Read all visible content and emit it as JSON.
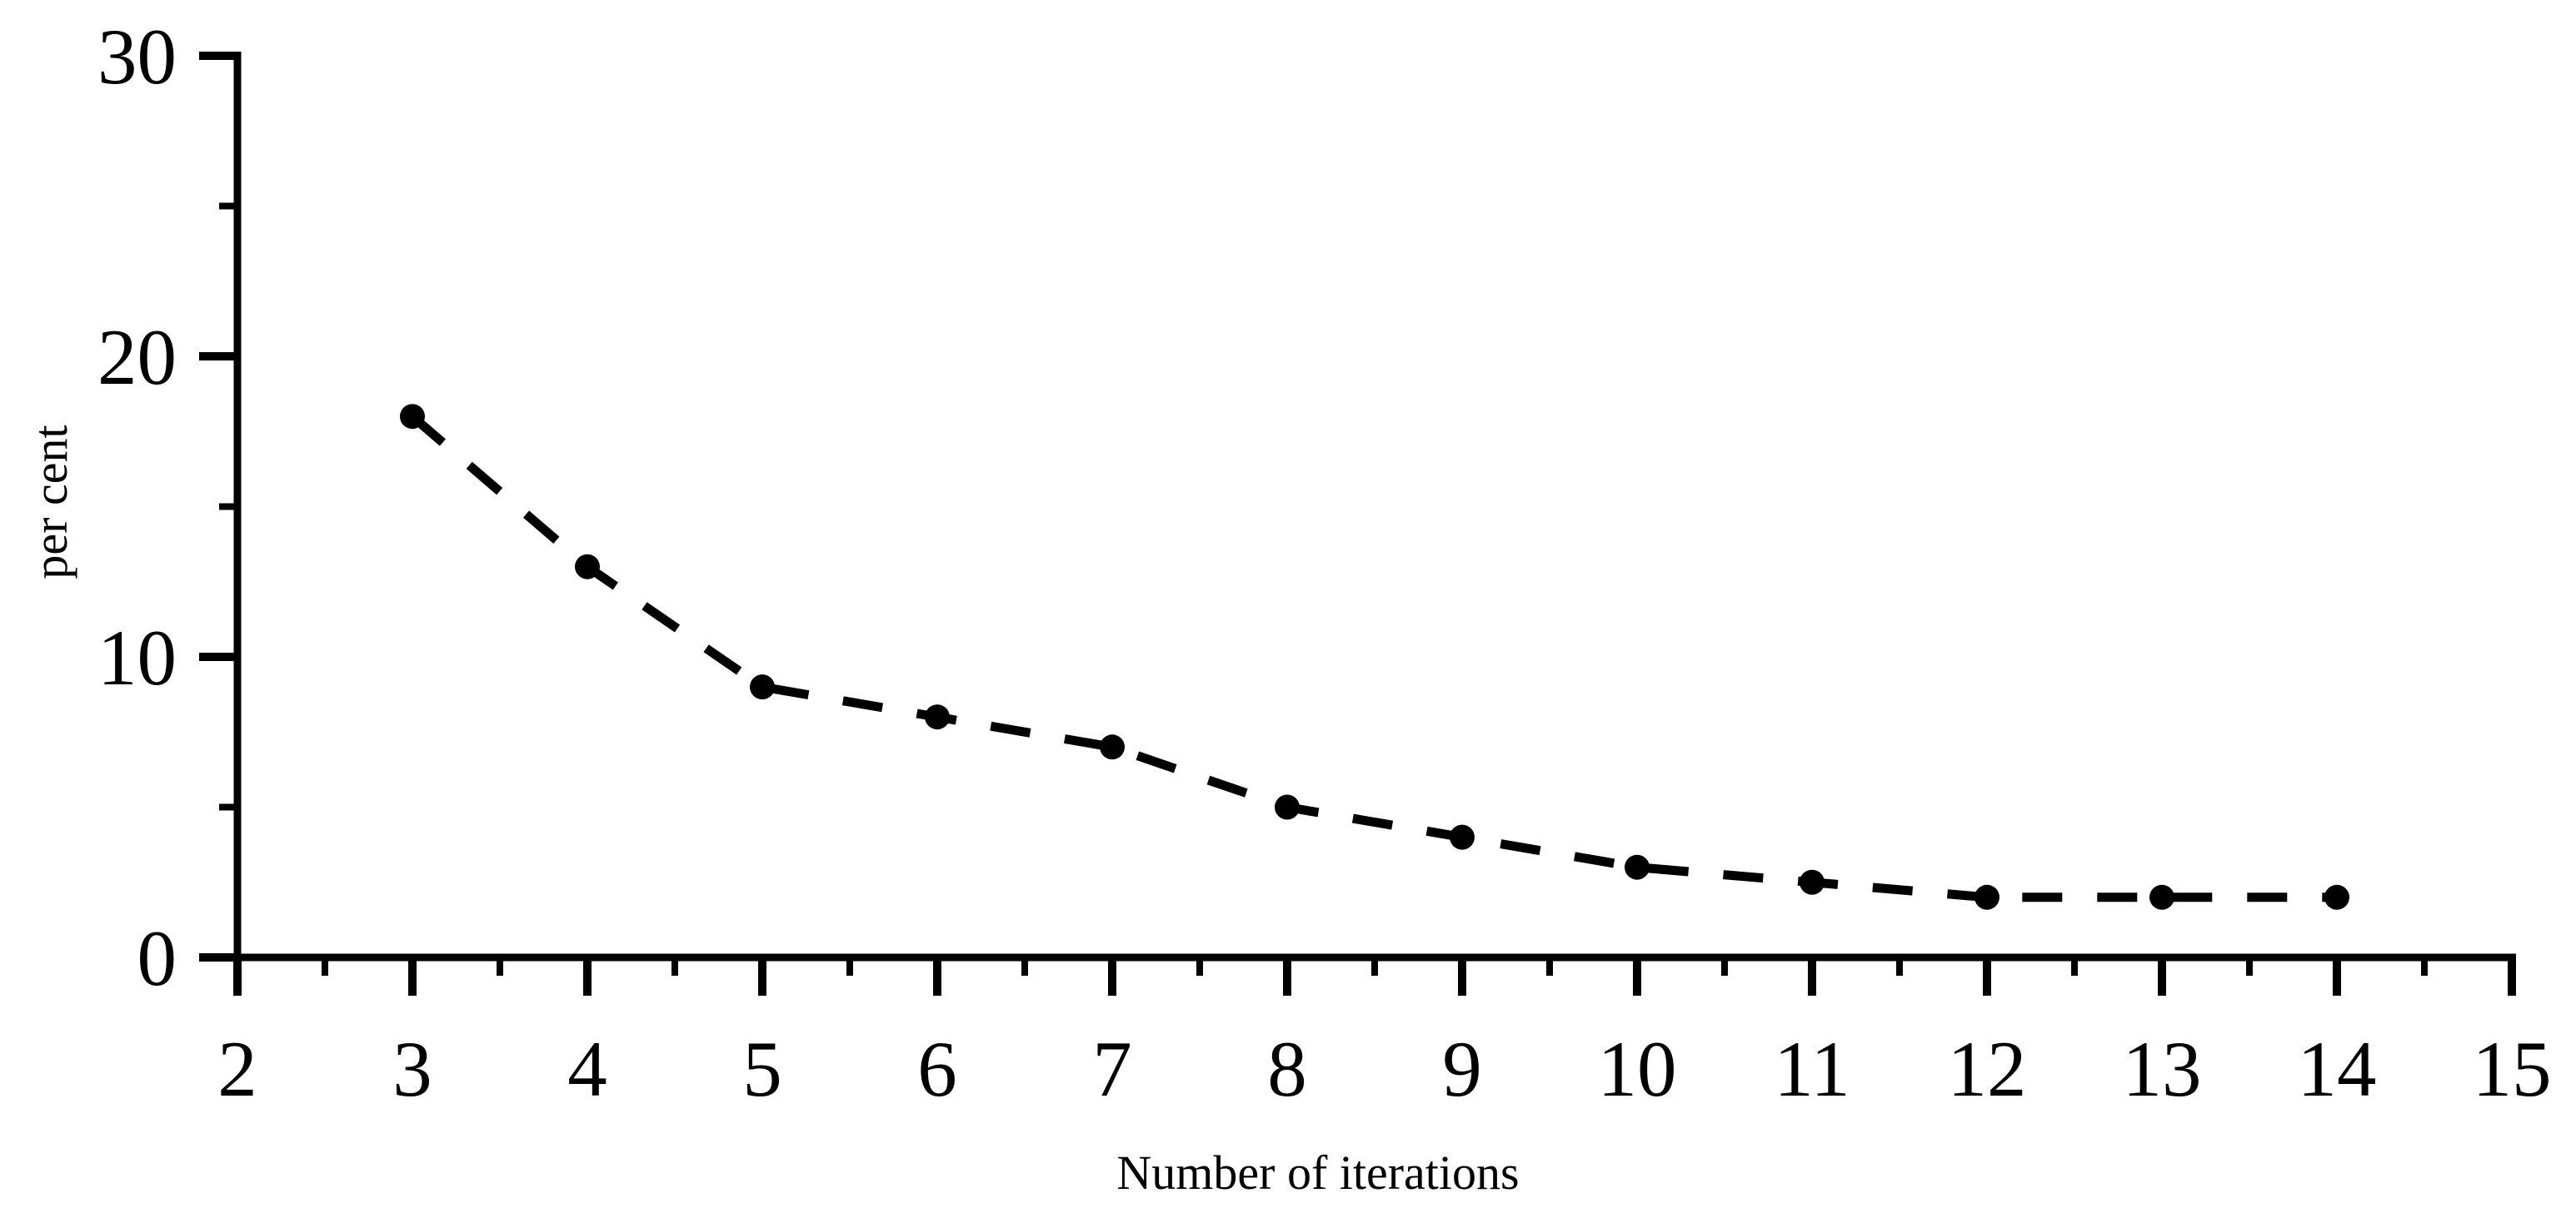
{
  "chart_data": {
    "type": "line",
    "title": "",
    "xlabel": "Number of iterations",
    "ylabel": "per cent",
    "x": [
      3,
      4,
      5,
      6,
      7,
      8,
      9,
      10,
      11,
      12,
      13,
      14
    ],
    "y": [
      18,
      13,
      9,
      8,
      7,
      5,
      4,
      3,
      2.5,
      2,
      2,
      2
    ],
    "series_name": "per cent vs iterations",
    "xlim": [
      2,
      15
    ],
    "ylim": [
      0,
      30
    ],
    "x_major_ticks": [
      2,
      3,
      4,
      5,
      6,
      7,
      8,
      9,
      10,
      11,
      12,
      13,
      14,
      15
    ],
    "x_tick_labels": [
      "2",
      "3",
      "4",
      "5",
      "6",
      "7",
      "8",
      "9",
      "10",
      "11",
      "12",
      "13",
      "14",
      "15"
    ],
    "x_minor_ticks": [
      2.5,
      3.5,
      4.5,
      5.5,
      6.5,
      7.5,
      8.5,
      9.5,
      10.5,
      11.5,
      12.5,
      13.5,
      14.5
    ],
    "y_major_ticks": [
      0,
      10,
      20,
      30
    ],
    "y_tick_labels": [
      "0",
      "10",
      "20",
      "30"
    ],
    "y_minor_ticks": [
      5,
      15,
      25
    ],
    "grid": false,
    "legend_position": "none",
    "line_style": "dashed",
    "marker": "circle",
    "colors": {
      "line": "#000000",
      "marker": "#000000",
      "axis": "#000000",
      "text": "#000000",
      "background": "#ffffff"
    }
  }
}
